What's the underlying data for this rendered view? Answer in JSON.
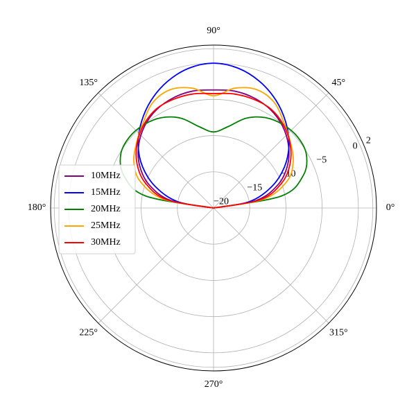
{
  "chart_data": {
    "type": "polar",
    "x": [
      0,
      10,
      20,
      30,
      40,
      50,
      60,
      70,
      80,
      90,
      100,
      110,
      120,
      130,
      140,
      150,
      160,
      170,
      180
    ],
    "xlim": [
      0,
      360
    ],
    "xticks": [
      {
        "value": 0,
        "label": "0°"
      },
      {
        "value": 45,
        "label": "45°"
      },
      {
        "value": 90,
        "label": "90°"
      },
      {
        "value": 135,
        "label": "135°"
      },
      {
        "value": 180,
        "label": "180°"
      },
      {
        "value": 225,
        "label": "225°"
      },
      {
        "value": 270,
        "label": "270°"
      },
      {
        "value": 315,
        "label": "315°"
      }
    ],
    "ylim": [
      -20,
      2.5
    ],
    "yticks": [
      {
        "value": -20,
        "label": "−20"
      },
      {
        "value": -15,
        "label": "−15"
      },
      {
        "value": -10,
        "label": "−10"
      },
      {
        "value": -5,
        "label": "−5"
      },
      0,
      2
    ],
    "grid": true,
    "legend": "center left",
    "series": [
      {
        "name": "10MHz",
        "color": "#800080",
        "values": [
          -20,
          -14,
          -10.5,
          -8.2,
          -6.5,
          -5.2,
          -4.3,
          -3.8,
          -3.6,
          -3.7,
          -3.6,
          -3.8,
          -4.3,
          -5.2,
          -6.5,
          -8.2,
          -10.5,
          -14,
          -20
        ]
      },
      {
        "name": "15MHz",
        "color": "#0000ff",
        "values": [
          -20,
          -15,
          -11.5,
          -8.7,
          -6.4,
          -4.5,
          -2.8,
          -1.4,
          -0.4,
          0,
          -0.4,
          -1.4,
          -2.8,
          -4.5,
          -6.4,
          -8.7,
          -11.5,
          -15,
          -20
        ]
      },
      {
        "name": "20MHz",
        "color": "#008000",
        "values": [
          -20,
          -10.5,
          -6.8,
          -5.2,
          -4.8,
          -5.0,
          -5.6,
          -6.8,
          -8.6,
          -9.5,
          -8.6,
          -6.8,
          -5.6,
          -5.0,
          -4.8,
          -5.2,
          -6.8,
          -10.5,
          -20
        ]
      },
      {
        "name": "25MHz",
        "color": "#ffa500",
        "values": [
          -20,
          -13,
          -9.2,
          -7.3,
          -6.1,
          -4.8,
          -3.2,
          -2.6,
          -3.2,
          -4.5,
          -3.2,
          -2.6,
          -3.2,
          -4.8,
          -6.1,
          -7.3,
          -9.2,
          -13,
          -20
        ]
      },
      {
        "name": "30MHz",
        "color": "#ff0000",
        "values": [
          -20,
          -13.5,
          -10,
          -7.8,
          -6.2,
          -5.0,
          -4.2,
          -4.0,
          -4.0,
          -4.2,
          -4.0,
          -4.0,
          -4.2,
          -5.0,
          -6.2,
          -7.8,
          -10,
          -13.5,
          -20
        ]
      }
    ]
  }
}
